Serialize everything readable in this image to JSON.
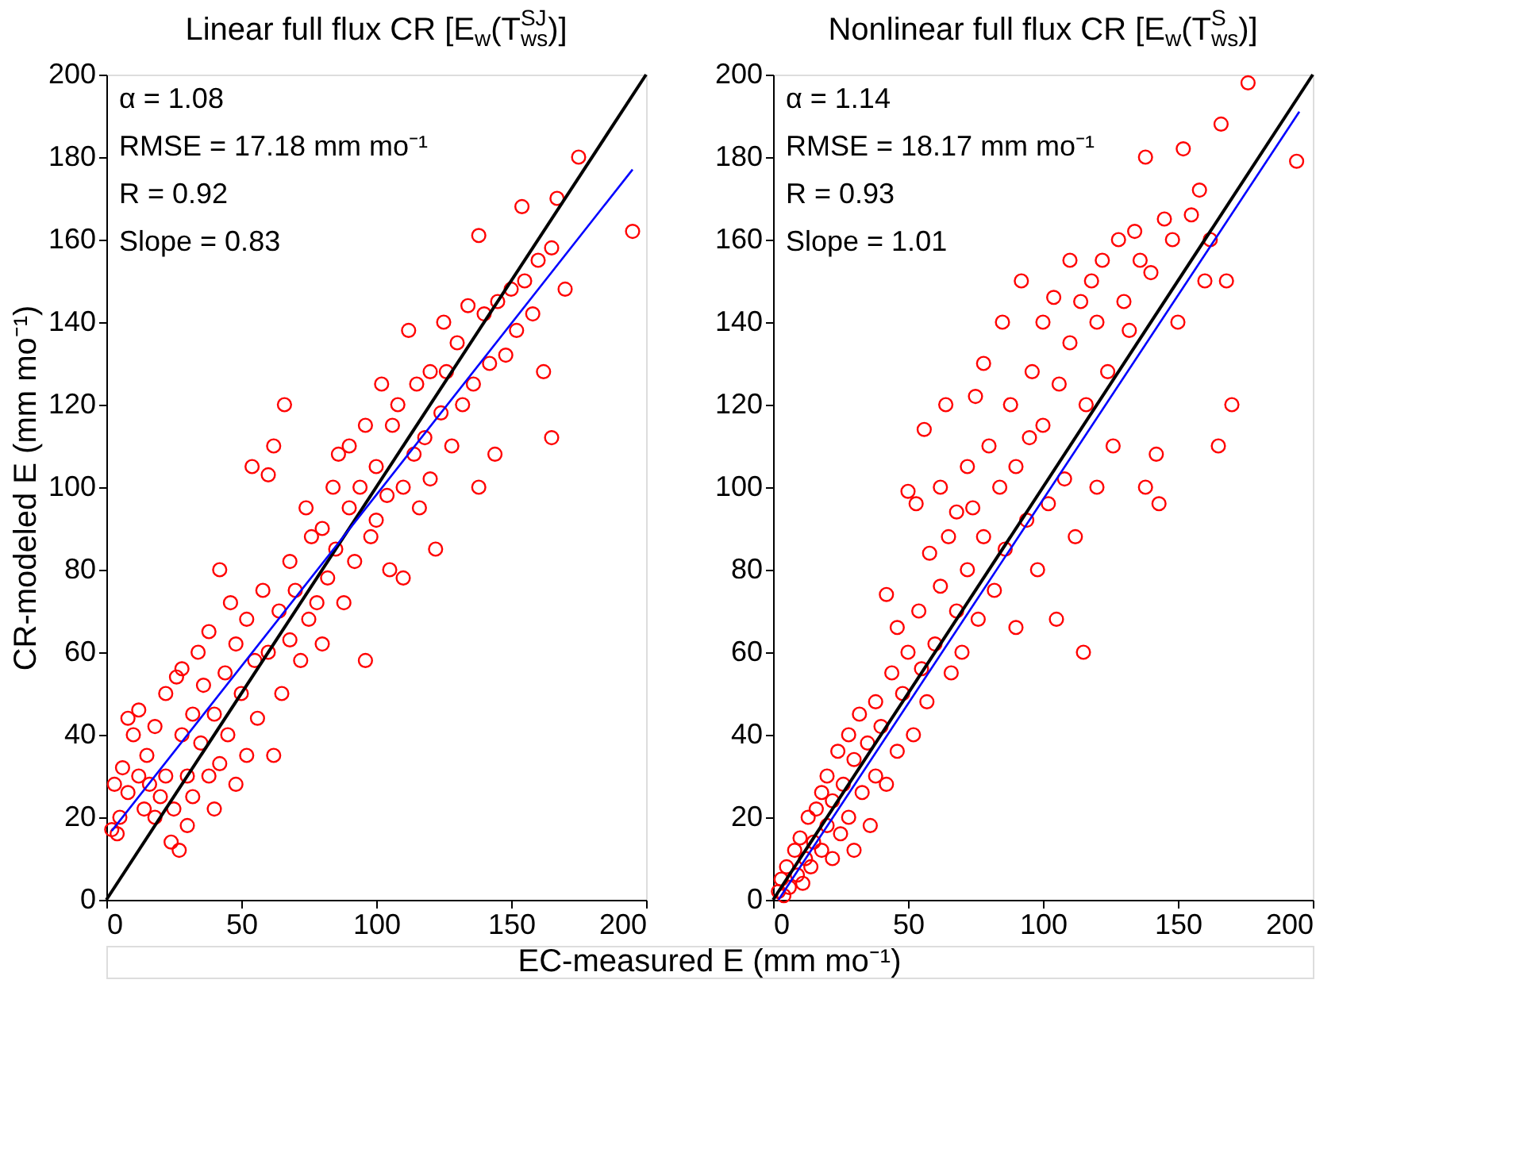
{
  "chart_data": [
    {
      "type": "scatter",
      "title": "Linear full flux CR [E$_{w}$(T$_{ws}$$^{SJ}$)]",
      "ylabel": "CR-modeled E (mm mo⁻¹)",
      "xlabel": "EC-measured E (mm mo⁻¹)",
      "xlim": [
        0,
        200
      ],
      "ylim": [
        0,
        200
      ],
      "xticks": [
        0,
        50,
        100,
        150,
        200
      ],
      "yticks": [
        0,
        20,
        40,
        60,
        80,
        100,
        120,
        140,
        160,
        180,
        200
      ],
      "grid": false,
      "marker": "circle",
      "annotations": [
        "α = 1.08",
        "RMSE = 17.18 mm mo⁻¹",
        "R = 0.92",
        "Slope = 0.83"
      ],
      "series": [
        {
          "type": "scatter",
          "color": "#ff0000",
          "x": [
            2,
            4,
            5,
            3,
            6,
            8,
            8,
            10,
            12,
            12,
            14,
            15,
            16,
            18,
            18,
            20,
            22,
            22,
            24,
            25,
            26,
            27,
            28,
            28,
            30,
            30,
            32,
            32,
            34,
            35,
            36,
            38,
            38,
            40,
            40,
            42,
            42,
            44,
            45,
            46,
            48,
            48,
            50,
            52,
            52,
            54,
            55,
            56,
            58,
            60,
            60,
            62,
            62,
            64,
            65,
            66,
            68,
            68,
            70,
            72,
            74,
            75,
            76,
            78,
            80,
            80,
            82,
            84,
            85,
            86,
            88,
            90,
            90,
            92,
            94,
            96,
            96,
            98,
            100,
            100,
            102,
            104,
            105,
            106,
            108,
            110,
            110,
            112,
            114,
            115,
            116,
            118,
            120,
            120,
            122,
            124,
            125,
            126,
            128,
            130,
            132,
            134,
            136,
            138,
            138,
            140,
            142,
            144,
            145,
            148,
            150,
            152,
            154,
            155,
            158,
            160,
            162,
            165,
            165,
            167,
            170,
            175,
            195
          ],
          "values": [
            17,
            16,
            20,
            28,
            32,
            26,
            44,
            40,
            46,
            30,
            22,
            35,
            28,
            20,
            42,
            25,
            30,
            50,
            14,
            22,
            54,
            12,
            40,
            56,
            18,
            30,
            25,
            45,
            60,
            38,
            52,
            30,
            65,
            22,
            45,
            80,
            33,
            55,
            40,
            72,
            28,
            62,
            50,
            68,
            35,
            105,
            58,
            44,
            75,
            103,
            60,
            35,
            110,
            70,
            50,
            120,
            82,
            63,
            75,
            58,
            95,
            68,
            88,
            72,
            90,
            62,
            78,
            100,
            85,
            108,
            72,
            95,
            110,
            82,
            100,
            58,
            115,
            88,
            105,
            92,
            125,
            98,
            80,
            115,
            120,
            100,
            78,
            138,
            108,
            125,
            95,
            112,
            128,
            102,
            85,
            118,
            140,
            128,
            110,
            135,
            120,
            144,
            125,
            161,
            100,
            142,
            130,
            108,
            145,
            132,
            148,
            138,
            168,
            150,
            142,
            155,
            128,
            112,
            158,
            170,
            148,
            180,
            162
          ]
        },
        {
          "type": "line",
          "color": "#000000",
          "marker": "none",
          "line_style": "solid",
          "x": [
            0,
            200
          ],
          "values": [
            0,
            200
          ]
        },
        {
          "type": "line",
          "color": "#0000ff",
          "marker": "none",
          "line_style": "solid",
          "x": [
            2,
            195
          ],
          "values": [
            16.7,
            177
          ]
        }
      ]
    },
    {
      "type": "scatter",
      "title": "Nonlinear full flux CR [E$_{w}$(T$_{ws}$$^{S}$)]",
      "xlim": [
        0,
        200
      ],
      "ylim": [
        0,
        200
      ],
      "xticks": [
        0,
        50,
        100,
        150,
        200
      ],
      "yticks": [
        0,
        20,
        40,
        60,
        80,
        100,
        120,
        140,
        160,
        180,
        200
      ],
      "grid": false,
      "marker": "circle",
      "annotations": [
        "α = 1.14",
        "RMSE = 18.17 mm mo⁻¹",
        "R = 0.93",
        "Slope = 1.01"
      ],
      "series": [
        {
          "type": "scatter",
          "color": "#ff0000",
          "x": [
            2,
            3,
            4,
            5,
            6,
            8,
            9,
            10,
            11,
            12,
            13,
            14,
            15,
            16,
            18,
            18,
            20,
            20,
            22,
            22,
            24,
            25,
            26,
            28,
            28,
            30,
            30,
            32,
            33,
            35,
            36,
            38,
            38,
            40,
            42,
            42,
            44,
            46,
            46,
            48,
            50,
            50,
            52,
            53,
            54,
            55,
            56,
            57,
            58,
            60,
            62,
            62,
            64,
            65,
            66,
            68,
            68,
            70,
            72,
            72,
            74,
            75,
            76,
            78,
            78,
            80,
            82,
            84,
            85,
            86,
            88,
            90,
            90,
            92,
            94,
            95,
            96,
            98,
            100,
            100,
            102,
            104,
            105,
            106,
            108,
            110,
            110,
            112,
            114,
            115,
            116,
            118,
            120,
            120,
            122,
            124,
            126,
            128,
            130,
            132,
            134,
            136,
            138,
            138,
            140,
            142,
            143,
            145,
            148,
            150,
            152,
            155,
            158,
            160,
            162,
            165,
            166,
            168,
            170,
            176,
            194
          ],
          "values": [
            2,
            5,
            1,
            8,
            3,
            12,
            6,
            15,
            4,
            10,
            20,
            8,
            14,
            22,
            12,
            26,
            18,
            30,
            10,
            24,
            36,
            16,
            28,
            40,
            20,
            34,
            12,
            45,
            26,
            38,
            18,
            48,
            30,
            42,
            74,
            28,
            55,
            36,
            66,
            50,
            60,
            99,
            40,
            96,
            70,
            56,
            114,
            48,
            84,
            62,
            100,
            76,
            120,
            88,
            55,
            94,
            70,
            60,
            80,
            105,
            95,
            122,
            68,
            88,
            130,
            110,
            75,
            100,
            140,
            85,
            120,
            66,
            105,
            150,
            92,
            112,
            128,
            80,
            140,
            115,
            96,
            146,
            68,
            125,
            102,
            155,
            135,
            88,
            145,
            60,
            120,
            150,
            100,
            140,
            155,
            128,
            110,
            160,
            145,
            138,
            162,
            155,
            180,
            100,
            152,
            108,
            96,
            165,
            160,
            140,
            182,
            166,
            172,
            150,
            160,
            110,
            188,
            150,
            120,
            198,
            179
          ]
        },
        {
          "type": "line",
          "color": "#000000",
          "marker": "none",
          "line_style": "solid",
          "x": [
            0,
            200
          ],
          "values": [
            0,
            200
          ]
        },
        {
          "type": "line",
          "color": "#0000ff",
          "marker": "none",
          "line_style": "solid",
          "x": [
            2,
            195
          ],
          "values": [
            0,
            191
          ]
        }
      ]
    }
  ]
}
